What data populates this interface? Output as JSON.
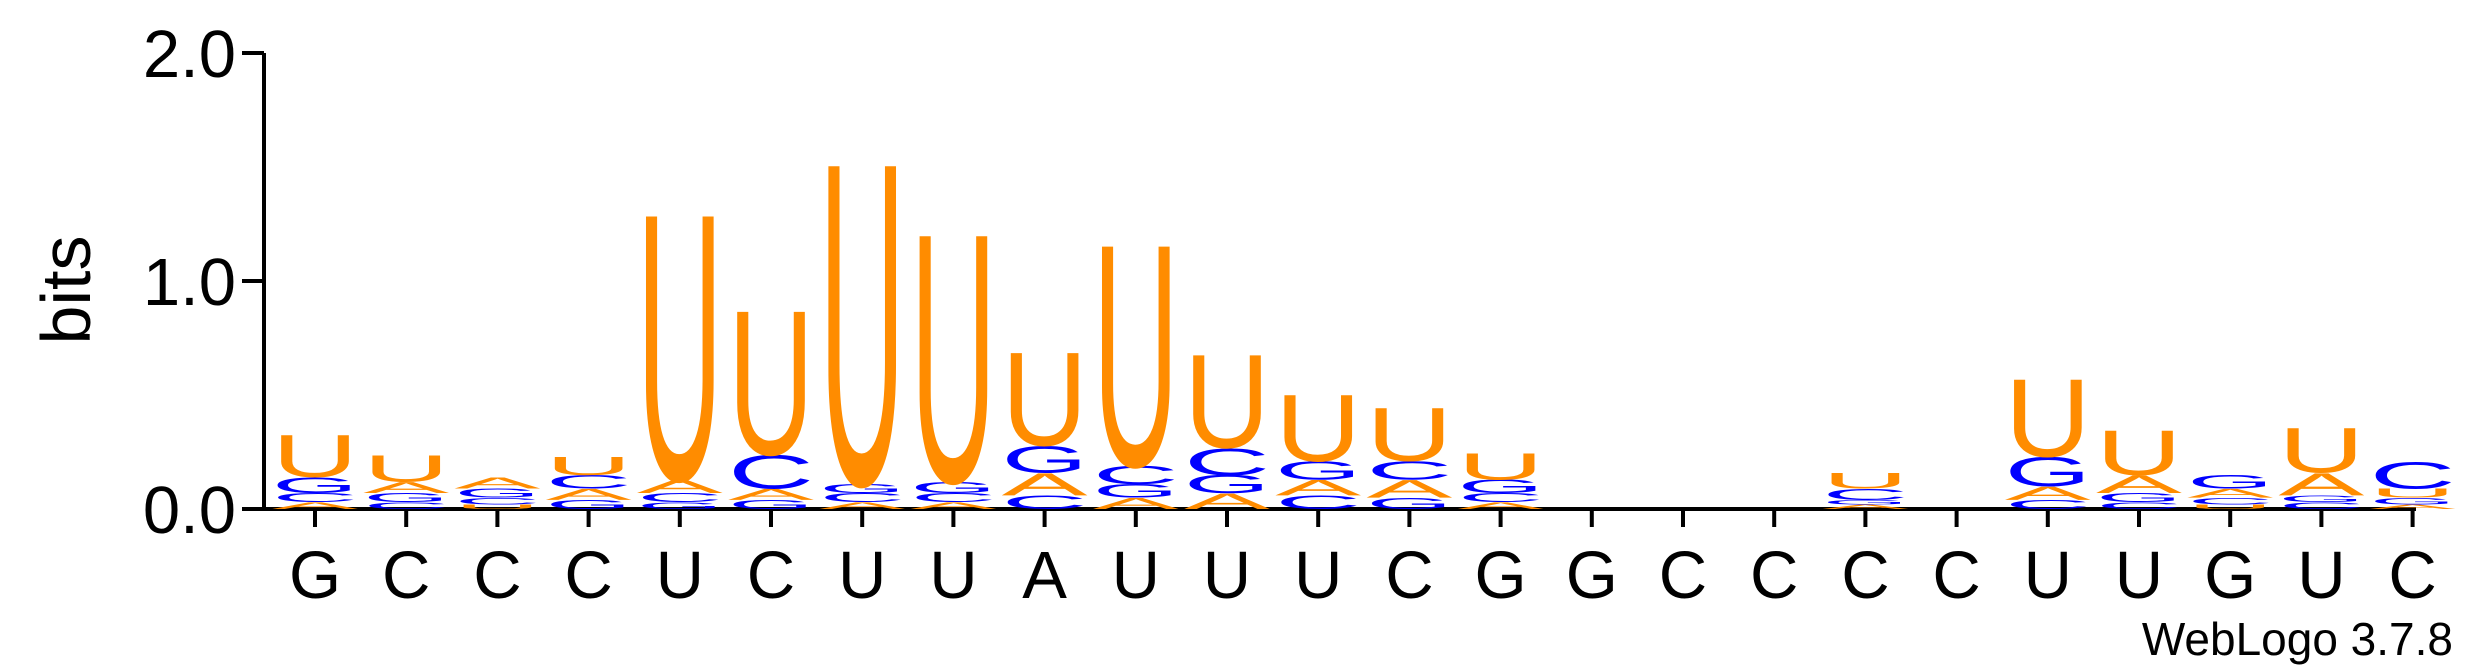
{
  "chart_data": {
    "type": "logo",
    "ylabel": "bits",
    "footer": "WebLogo 3.7.8",
    "categories": [
      "G",
      "C",
      "C",
      "C",
      "U",
      "C",
      "U",
      "U",
      "A",
      "U",
      "U",
      "U",
      "C",
      "G",
      "G",
      "C",
      "C",
      "C",
      "C",
      "U",
      "U",
      "G",
      "U",
      "C"
    ],
    "series": [
      {
        "name": "A",
        "color": "#ff8c00",
        "values": [
          0.03,
          0.05,
          0.05,
          0.05,
          0.06,
          0.05,
          0.03,
          0.03,
          0.1,
          0.05,
          0.07,
          0.07,
          0.08,
          0.03,
          0,
          0,
          0,
          0.02,
          0,
          0.06,
          0.08,
          0.04,
          0.1,
          0.02
        ]
      },
      {
        "name": "C",
        "color": "#0000ff",
        "values": [
          0.04,
          0.03,
          0.03,
          0.06,
          0.04,
          0.15,
          0.04,
          0.04,
          0.06,
          0.08,
          0.12,
          0.06,
          0.08,
          0.04,
          0,
          0,
          0,
          0.05,
          0,
          0.04,
          0.03,
          0.03,
          0.03,
          0.12
        ]
      },
      {
        "name": "G",
        "color": "#0000ff",
        "values": [
          0.07,
          0.04,
          0.04,
          0.04,
          0.03,
          0.04,
          0.04,
          0.05,
          0.12,
          0.06,
          0.08,
          0.08,
          0.05,
          0.06,
          0,
          0,
          0,
          0.02,
          0,
          0.13,
          0.04,
          0.06,
          0.03,
          0.03
        ]
      },
      {
        "name": "U",
        "color": "#ff8c00",
        "values": [
          0.19,
          0.12,
          0.02,
          0.08,
          1.2,
          0.65,
          1.45,
          1.12,
          0.42,
          1.0,
          0.42,
          0.3,
          0.24,
          0.12,
          0,
          0,
          0,
          0.07,
          0,
          0.35,
          0.2,
          0.02,
          0.2,
          0.04
        ]
      }
    ],
    "ylim": [
      0,
      2
    ],
    "yticks": [
      {
        "value": 0,
        "label": "0.0"
      },
      {
        "value": 1,
        "label": "1.0"
      },
      {
        "value": 2,
        "label": "2.0"
      }
    ]
  }
}
